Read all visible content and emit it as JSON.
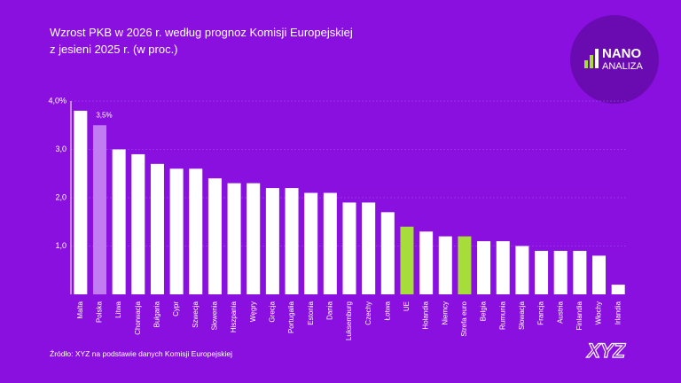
{
  "chart_data": {
    "type": "bar",
    "title": [
      "Wzrost PKB w 2026 r. według prognoz Komisji Europejskiej",
      "z jesieni 2025 r. (w proc.)"
    ],
    "categories": [
      "Malta",
      "Polska",
      "Litwa",
      "Chorwacja",
      "Bułgaria",
      "Cypr",
      "Szwecja",
      "Słowenia",
      "Hiszpania",
      "Węgry",
      "Grecja",
      "Portugalia",
      "Estonia",
      "Dania",
      "Luksemburg",
      "Czechy",
      "Łotwa",
      "UE",
      "Holandia",
      "Niemcy",
      "Strefa euro",
      "Belgia",
      "Rumunia",
      "Słowacja",
      "Francja",
      "Austria",
      "Finlandia",
      "Włochy",
      "Irlandia"
    ],
    "values": [
      3.8,
      3.5,
      3.0,
      2.9,
      2.7,
      2.6,
      2.6,
      2.4,
      2.3,
      2.3,
      2.2,
      2.2,
      2.1,
      2.1,
      1.9,
      1.9,
      1.7,
      1.4,
      1.3,
      1.2,
      1.2,
      1.1,
      1.1,
      1.0,
      0.9,
      0.9,
      0.9,
      0.8,
      0.2
    ],
    "value_labels": [
      null,
      "3,5%",
      null,
      null,
      null,
      null,
      null,
      null,
      null,
      null,
      null,
      null,
      null,
      null,
      null,
      null,
      null,
      null,
      null,
      null,
      null,
      null,
      null,
      null,
      null,
      null,
      null,
      null,
      null
    ],
    "colors": [
      "#ffffff",
      "#c27cf2",
      "#ffffff",
      "#ffffff",
      "#ffffff",
      "#ffffff",
      "#ffffff",
      "#ffffff",
      "#ffffff",
      "#ffffff",
      "#ffffff",
      "#ffffff",
      "#ffffff",
      "#ffffff",
      "#ffffff",
      "#ffffff",
      "#ffffff",
      "#a6dd3a",
      "#ffffff",
      "#ffffff",
      "#a6dd3a",
      "#ffffff",
      "#ffffff",
      "#ffffff",
      "#ffffff",
      "#ffffff",
      "#ffffff",
      "#ffffff",
      "#ffffff"
    ],
    "ylim": [
      0,
      4
    ],
    "yticks": [
      {
        "value": 1,
        "label": "1,0"
      },
      {
        "value": 2,
        "label": "2,0"
      },
      {
        "value": 3,
        "label": "3,0"
      },
      {
        "value": 4,
        "label": "4,0%"
      }
    ],
    "grid": true,
    "source": "Źródło: XYZ na podstawie danych Komisji Europejskiej"
  },
  "logo": {
    "top": "NANO",
    "bottom": "ANALIZA",
    "brand": "XYZ"
  }
}
